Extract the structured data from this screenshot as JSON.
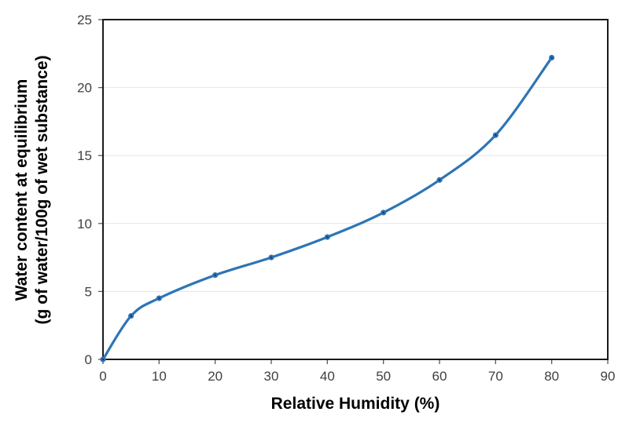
{
  "chart_data": {
    "type": "line",
    "title": "",
    "xlabel": "Relative Humidity (%)",
    "ylabel_lines": [
      "Water content at equilibrium",
      "(g of water/100g of wet substance)"
    ],
    "x": [
      0,
      5,
      10,
      20,
      30,
      40,
      50,
      60,
      70,
      80
    ],
    "y": [
      0,
      3.2,
      4.5,
      6.2,
      7.5,
      9.0,
      10.8,
      13.2,
      16.5,
      22.2
    ],
    "xlim": [
      0,
      90
    ],
    "ylim": [
      0,
      25
    ],
    "x_ticks": [
      0,
      10,
      20,
      30,
      40,
      50,
      60,
      70,
      80,
      90
    ],
    "y_ticks": [
      0,
      5,
      10,
      15,
      20,
      25
    ],
    "grid": "horizontal-only",
    "legend_position": "none",
    "smooth_line": true,
    "marker": "circle",
    "colors": {
      "line": "#2E75B6",
      "marker_fill": "#2E75B6",
      "marker_center": "#1C4270",
      "gridline": "#E6E6E6",
      "plot_border": "#1A1A1A",
      "tick_mark": "#595959",
      "tick_label": "#404040",
      "axis_title": "#000000",
      "background": "#FFFFFF"
    }
  }
}
